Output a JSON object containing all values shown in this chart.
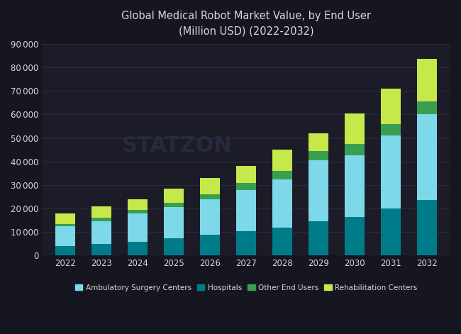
{
  "years": [
    2022,
    2023,
    2024,
    2025,
    2026,
    2027,
    2028,
    2029,
    2030,
    2031,
    2032
  ],
  "hospitals": [
    4000,
    5000,
    6000,
    7500,
    9000,
    10500,
    12000,
    14500,
    16500,
    20000,
    23500
  ],
  "ambulatory_surgery_centers": [
    8500,
    9500,
    12000,
    13000,
    15000,
    17500,
    20500,
    26000,
    26000,
    31000,
    36500
  ],
  "other_end_users": [
    1000,
    1500,
    1500,
    2000,
    2000,
    3000,
    3500,
    4000,
    5000,
    5000,
    5500
  ],
  "rehabilitation_centers": [
    4500,
    5000,
    4500,
    6000,
    7000,
    7000,
    9000,
    7500,
    13000,
    15000,
    18000
  ],
  "colors": {
    "hospitals": "#007b8a",
    "ambulatory_surgery_centers": "#7dd8ea",
    "other_end_users": "#3a9e50",
    "rehabilitation_centers": "#c5e84a"
  },
  "title_line1": "Global Medical Robot Market Value, by End User",
  "title_line2": "(Million USD) (2022-2032)",
  "legend_labels": [
    "Ambulatory Surgery Centers",
    "Hospitals",
    "Other End Users",
    "Rehabilitation Centers"
  ],
  "ylim": [
    0,
    90000
  ],
  "yticks": [
    0,
    10000,
    20000,
    30000,
    40000,
    50000,
    60000,
    70000,
    80000,
    90000
  ],
  "background_color": "#161620",
  "plot_bg_color": "#1c1c28",
  "grid_color": "#2e2e45",
  "text_color": "#d8d8d8",
  "watermark": "STATZON",
  "bar_width": 0.55
}
